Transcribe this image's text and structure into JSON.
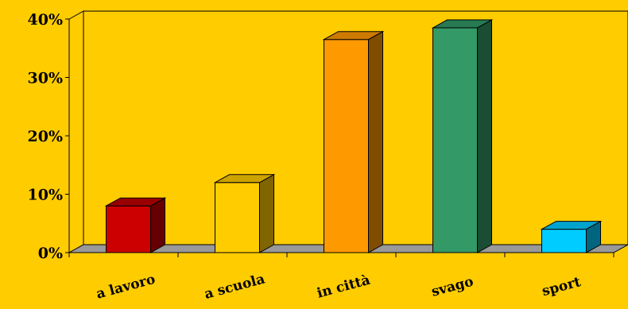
{
  "chart_data": {
    "type": "bar",
    "title": "",
    "xlabel": "",
    "ylabel": "",
    "categories": [
      "a lavoro",
      "a scuola",
      "in città",
      "svago",
      "sport"
    ],
    "values": [
      8,
      12,
      36.5,
      38.5,
      4
    ],
    "value_unit": "%",
    "ylim": [
      0,
      40
    ],
    "yticks": [
      0,
      10,
      20,
      30,
      40
    ],
    "ytick_labels": [
      "0%",
      "10%",
      "20%",
      "30%",
      "40%"
    ],
    "grid": false,
    "legend": "none",
    "style": "3d-column",
    "colors": {
      "background": "#FFCC00",
      "floor": "#999999",
      "bars": [
        "#CC0000",
        "#FFCC00",
        "#FF9900",
        "#339966",
        "#00CCFF"
      ],
      "bar_tops": [
        "#990000",
        "#CCA300",
        "#CC7A00",
        "#287A52",
        "#00A3CC"
      ],
      "bar_sides": [
        "#660000",
        "#806600",
        "#804D00",
        "#1A4D33",
        "#006680"
      ]
    }
  }
}
